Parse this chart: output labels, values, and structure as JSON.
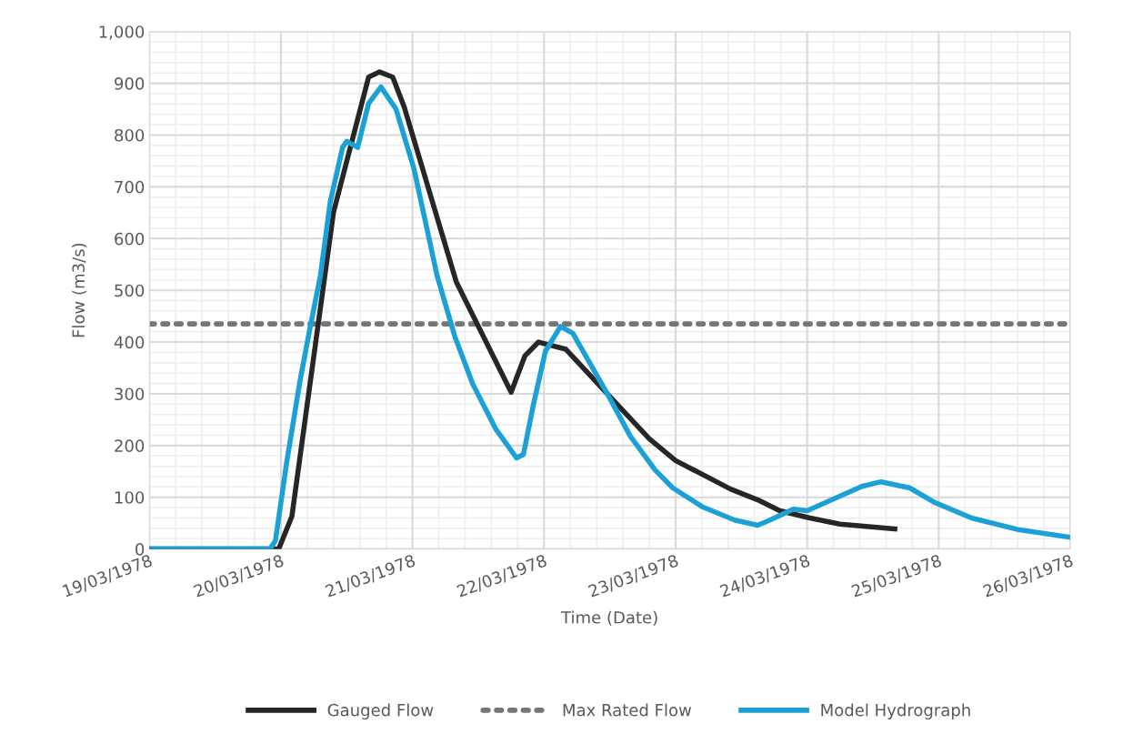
{
  "chart_data": {
    "type": "line",
    "xlabel": "Time (Date)",
    "ylabel": "Flow (m3/s)",
    "xlim": [
      "1978-03-19T00:00",
      "1978-03-26T00:00"
    ],
    "xticks": [
      {
        "value": "1978-03-19",
        "label": "19/03/1978"
      },
      {
        "value": "1978-03-20",
        "label": "20/03/1978"
      },
      {
        "value": "1978-03-21",
        "label": "21/03/1978"
      },
      {
        "value": "1978-03-22",
        "label": "22/03/1978"
      },
      {
        "value": "1978-03-23",
        "label": "23/03/1978"
      },
      {
        "value": "1978-03-24",
        "label": "24/03/1978"
      },
      {
        "value": "1978-03-25",
        "label": "25/03/1978"
      },
      {
        "value": "1978-03-26",
        "label": "26/03/1978"
      }
    ],
    "ylim": [
      0,
      1000
    ],
    "yticks": [
      0,
      100,
      200,
      300,
      400,
      500,
      600,
      700,
      800,
      900,
      {
        "value": 1000,
        "label": "1,000"
      }
    ],
    "grid": true,
    "legend": "bottom",
    "marker": "none",
    "line_style": "solid",
    "series": [
      {
        "name": "Gauged Flow",
        "color": "#262626",
        "x": [
          "1978-03-19T00:00",
          "1978-03-19T23:36",
          "1978-03-20T02:00",
          "1978-03-20T09:36",
          "1978-03-20T16:00",
          "1978-03-20T18:00",
          "1978-03-20T20:24",
          "1978-03-20T22:30",
          "1978-03-21T08:00",
          "1978-03-21T18:00",
          "1978-03-21T20:30",
          "1978-03-21T23:00",
          "1978-03-22T04:00",
          "1978-03-22T12:30",
          "1978-03-22T19:12",
          "1978-03-23T00:00",
          "1978-03-23T10:00",
          "1978-03-23T15:00",
          "1978-03-23T19:00",
          "1978-03-24T00:30",
          "1978-03-24T06:00",
          "1978-03-24T16:00"
        ],
        "values": [
          0,
          0,
          63,
          651,
          912,
          922,
          912,
          854,
          516,
          303,
          373,
          400,
          386,
          289,
          213,
          171,
          116,
          95,
          74,
          60,
          48,
          39
        ]
      },
      {
        "name": "Model Hydrograph",
        "color": "#1ba1d6",
        "x": [
          "1978-03-19T00:00",
          "1978-03-19T22:00",
          "1978-03-19T23:00",
          "1978-03-20T01:00",
          "1978-03-20T03:30",
          "1978-03-20T05:15",
          "1978-03-20T07:12",
          "1978-03-20T09:00",
          "1978-03-20T11:15",
          "1978-03-20T12:00",
          "1978-03-20T14:00",
          "1978-03-20T16:00",
          "1978-03-20T18:15",
          "1978-03-20T21:00",
          "1978-03-21T00:15",
          "1978-03-21T04:30",
          "1978-03-21T07:45",
          "1978-03-21T11:00",
          "1978-03-21T15:15",
          "1978-03-21T19:00",
          "1978-03-21T20:15",
          "1978-03-21T22:00",
          "1978-03-22T00:15",
          "1978-03-22T03:00",
          "1978-03-22T05:15",
          "1978-03-22T11:30",
          "1978-03-22T15:45",
          "1978-03-22T20:15",
          "1978-03-22T23:30",
          "1978-03-23T05:00",
          "1978-03-23T10:45",
          "1978-03-23T15:00",
          "1978-03-23T17:15",
          "1978-03-23T21:30",
          "1978-03-24T00:00",
          "1978-03-24T10:00",
          "1978-03-24T13:30",
          "1978-03-24T18:45",
          "1978-03-24T23:15",
          "1978-03-25T06:00",
          "1978-03-25T14:45",
          "1978-03-25T23:45"
        ],
        "values": [
          0,
          0,
          16,
          164,
          326,
          424,
          528,
          671,
          776,
          788,
          776,
          861,
          893,
          850,
          736,
          528,
          410,
          319,
          231,
          176,
          183,
          276,
          382,
          430,
          417,
          301,
          218,
          153,
          118,
          81,
          56,
          46,
          56,
          77,
          74,
          121,
          130,
          118,
          90,
          60,
          37,
          23
        ]
      }
    ],
    "ref_lines": [
      {
        "axis": "y",
        "value": 435,
        "label": "Max Rated Flow",
        "color": "#767676",
        "line_style": "dotted"
      }
    ]
  }
}
